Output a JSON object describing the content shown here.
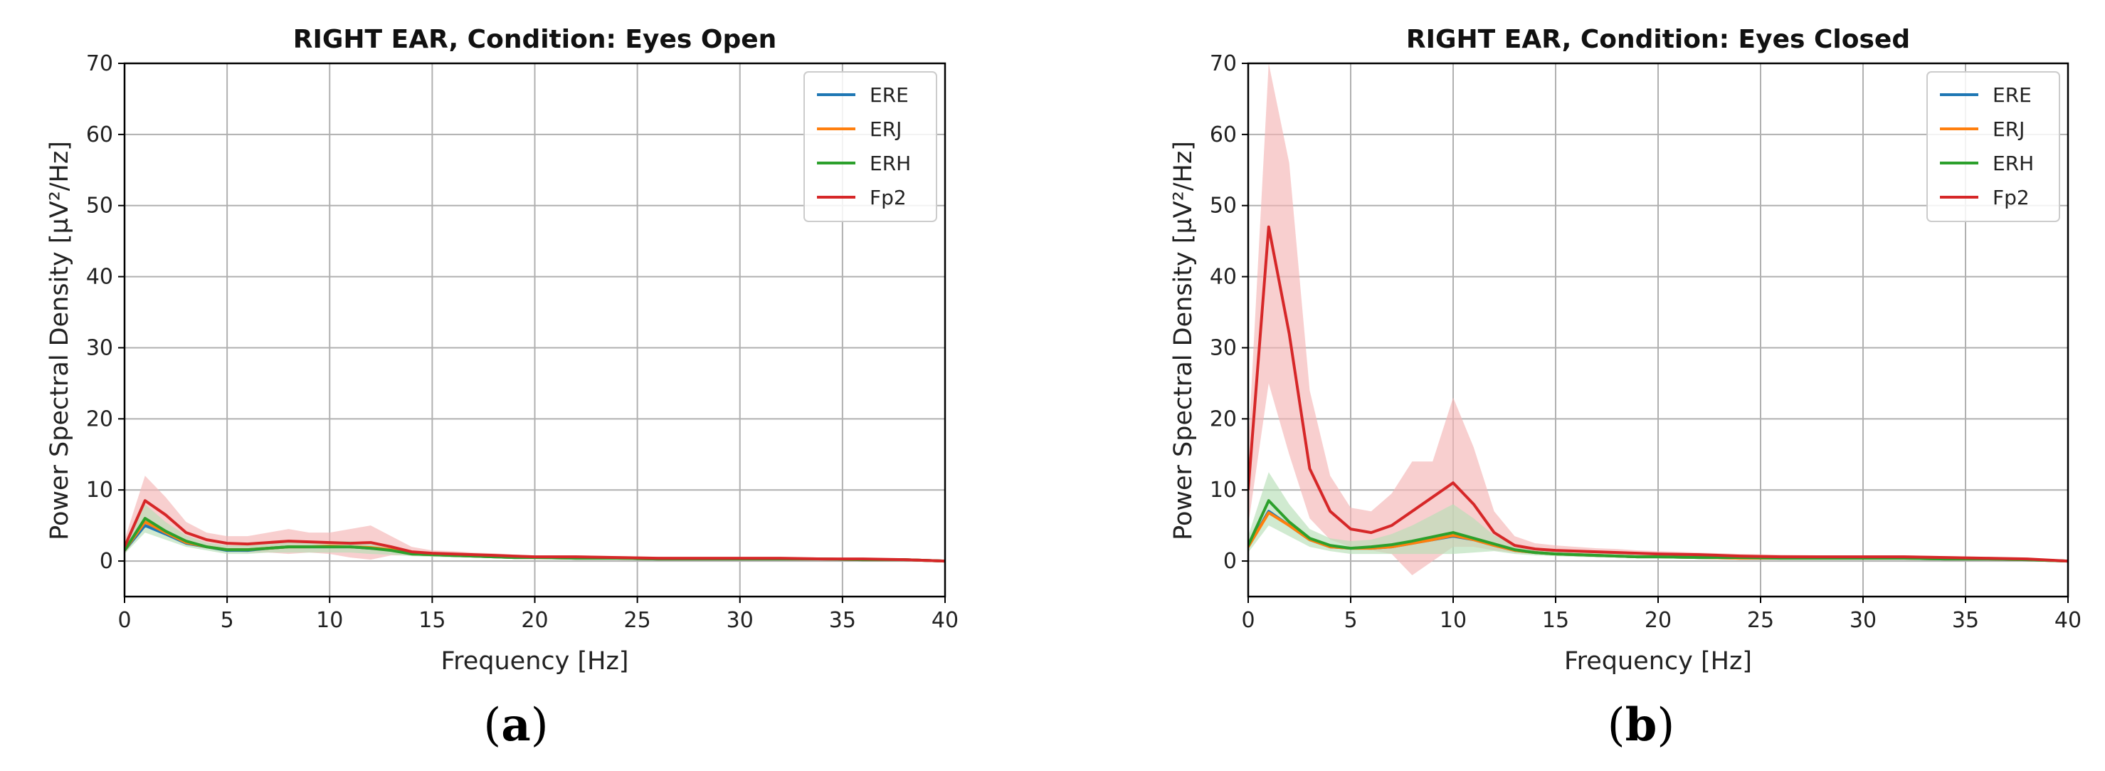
{
  "chart_data": [
    {
      "type": "line",
      "title": "RIGHT EAR, Condition: Eyes Open",
      "xlabel": "Frequency [Hz]",
      "ylabel": "Power Spectral Density [µV²/Hz]",
      "xlim": [
        0,
        40
      ],
      "ylim": [
        -5,
        70
      ],
      "xticks": [
        0,
        5,
        10,
        15,
        20,
        25,
        30,
        35,
        40
      ],
      "yticks": [
        0,
        10,
        20,
        30,
        40,
        50,
        60,
        70
      ],
      "grid": true,
      "legend_position": "top-right",
      "x": [
        0,
        1,
        2,
        3,
        4,
        5,
        6,
        7,
        8,
        9,
        10,
        11,
        12,
        13,
        14,
        15,
        16,
        17,
        18,
        19,
        20,
        22,
        24,
        26,
        28,
        30,
        32,
        34,
        36,
        38,
        40
      ],
      "series": [
        {
          "name": "ERE",
          "color": "#1f77b4",
          "values": [
            1.5,
            5.0,
            3.8,
            2.5,
            2.0,
            1.5,
            1.5,
            1.8,
            2.0,
            2.0,
            2.0,
            2.0,
            1.8,
            1.6,
            1.0,
            0.9,
            0.8,
            0.7,
            0.6,
            0.5,
            0.5,
            0.4,
            0.4,
            0.3,
            0.3,
            0.3,
            0.3,
            0.3,
            0.2,
            0.2,
            0.0
          ]
        },
        {
          "name": "ERJ",
          "color": "#ff7f0e",
          "values": [
            1.5,
            5.5,
            4.0,
            2.6,
            2.0,
            1.6,
            1.6,
            1.8,
            2.0,
            2.0,
            2.1,
            2.0,
            1.9,
            1.6,
            1.0,
            0.9,
            0.8,
            0.7,
            0.6,
            0.5,
            0.5,
            0.4,
            0.4,
            0.3,
            0.3,
            0.3,
            0.3,
            0.3,
            0.2,
            0.2,
            0.0
          ]
        },
        {
          "name": "ERH",
          "color": "#2ca02c",
          "values": [
            1.5,
            6.0,
            4.2,
            2.8,
            2.0,
            1.6,
            1.6,
            1.8,
            2.0,
            2.0,
            2.0,
            2.0,
            1.8,
            1.5,
            1.0,
            0.9,
            0.8,
            0.7,
            0.6,
            0.5,
            0.5,
            0.4,
            0.4,
            0.3,
            0.3,
            0.3,
            0.3,
            0.3,
            0.2,
            0.2,
            0.0
          ]
        },
        {
          "name": "Fp2",
          "color": "#d62728",
          "values": [
            2.0,
            8.5,
            6.5,
            4.0,
            3.0,
            2.5,
            2.4,
            2.6,
            2.8,
            2.7,
            2.6,
            2.5,
            2.6,
            2.0,
            1.3,
            1.1,
            1.0,
            0.9,
            0.8,
            0.7,
            0.6,
            0.6,
            0.5,
            0.4,
            0.4,
            0.4,
            0.4,
            0.3,
            0.3,
            0.2,
            0.0
          ]
        }
      ],
      "bands": [
        {
          "series": "Fp2",
          "color": "#f4b6b6",
          "lower": [
            1.0,
            5.0,
            4.0,
            2.5,
            2.0,
            1.5,
            1.2,
            1.2,
            1.0,
            1.2,
            1.0,
            0.5,
            0.2,
            0.8,
            0.8,
            0.7,
            0.6,
            0.6,
            0.5,
            0.5,
            0.4,
            0.4,
            0.3,
            0.3,
            0.3,
            0.3,
            0.3,
            0.2,
            0.2,
            0.1,
            0.0
          ],
          "upper": [
            3.0,
            12.0,
            9.0,
            5.5,
            4.0,
            3.5,
            3.5,
            4.0,
            4.5,
            4.0,
            4.0,
            4.5,
            5.0,
            3.5,
            2.0,
            1.5,
            1.4,
            1.2,
            1.1,
            0.9,
            0.8,
            0.8,
            0.7,
            0.6,
            0.5,
            0.5,
            0.5,
            0.4,
            0.4,
            0.3,
            0.0
          ]
        },
        {
          "series": "ERH",
          "color": "#b7dfb7",
          "lower": [
            1.0,
            4.0,
            3.0,
            2.0,
            1.5,
            1.0,
            1.0,
            1.2,
            1.2,
            1.2,
            1.2,
            1.2,
            1.0,
            0.9,
            0.7,
            0.6,
            0.5,
            0.5,
            0.4,
            0.4,
            0.3,
            0.3,
            0.3,
            0.2,
            0.2,
            0.2,
            0.2,
            0.2,
            0.1,
            0.1,
            0.0
          ],
          "upper": [
            2.0,
            8.0,
            5.5,
            3.6,
            2.6,
            2.2,
            2.2,
            2.4,
            2.8,
            2.8,
            2.8,
            2.8,
            2.6,
            2.1,
            1.3,
            1.2,
            1.1,
            0.9,
            0.8,
            0.6,
            0.6,
            0.5,
            0.5,
            0.4,
            0.4,
            0.4,
            0.4,
            0.4,
            0.3,
            0.3,
            0.0
          ]
        }
      ]
    },
    {
      "type": "line",
      "title": "RIGHT EAR, Condition: Eyes Closed",
      "xlabel": "Frequency [Hz]",
      "ylabel": "Power Spectral Density [µV²/Hz]",
      "xlim": [
        0,
        40
      ],
      "ylim": [
        -5,
        70
      ],
      "xticks": [
        0,
        5,
        10,
        15,
        20,
        25,
        30,
        35,
        40
      ],
      "yticks": [
        0,
        10,
        20,
        30,
        40,
        50,
        60,
        70
      ],
      "grid": true,
      "legend_position": "top-right",
      "x": [
        0,
        1,
        2,
        3,
        4,
        5,
        6,
        7,
        8,
        9,
        10,
        11,
        12,
        13,
        14,
        15,
        16,
        17,
        18,
        19,
        20,
        22,
        24,
        26,
        28,
        30,
        32,
        34,
        36,
        38,
        40
      ],
      "series": [
        {
          "name": "ERE",
          "color": "#1f77b4",
          "values": [
            2.0,
            7.0,
            5.0,
            3.0,
            2.0,
            1.8,
            1.8,
            2.0,
            2.5,
            3.0,
            3.5,
            3.0,
            2.2,
            1.5,
            1.2,
            1.0,
            0.9,
            0.8,
            0.7,
            0.6,
            0.6,
            0.5,
            0.4,
            0.4,
            0.4,
            0.4,
            0.4,
            0.3,
            0.3,
            0.2,
            0.0
          ]
        },
        {
          "name": "ERJ",
          "color": "#ff7f0e",
          "values": [
            2.0,
            6.8,
            5.0,
            3.0,
            2.0,
            1.8,
            1.8,
            2.0,
            2.5,
            3.0,
            3.6,
            3.0,
            2.2,
            1.5,
            1.2,
            1.0,
            0.9,
            0.8,
            0.7,
            0.6,
            0.6,
            0.5,
            0.4,
            0.4,
            0.4,
            0.4,
            0.4,
            0.3,
            0.3,
            0.2,
            0.0
          ]
        },
        {
          "name": "ERH",
          "color": "#2ca02c",
          "values": [
            2.2,
            8.5,
            5.5,
            3.2,
            2.2,
            1.8,
            2.0,
            2.3,
            2.8,
            3.4,
            4.0,
            3.2,
            2.4,
            1.6,
            1.2,
            1.0,
            0.9,
            0.8,
            0.7,
            0.6,
            0.6,
            0.5,
            0.5,
            0.4,
            0.4,
            0.4,
            0.4,
            0.3,
            0.3,
            0.2,
            0.0
          ]
        },
        {
          "name": "Fp2",
          "color": "#d62728",
          "values": [
            10.0,
            47.0,
            32.0,
            13.0,
            7.0,
            4.5,
            4.0,
            5.0,
            7.0,
            9.0,
            11.0,
            8.0,
            4.0,
            2.2,
            1.7,
            1.5,
            1.4,
            1.3,
            1.2,
            1.1,
            1.0,
            0.9,
            0.7,
            0.6,
            0.6,
            0.6,
            0.6,
            0.5,
            0.4,
            0.3,
            0.0
          ]
        }
      ],
      "bands": [
        {
          "series": "Fp2",
          "color": "#f4b6b6",
          "lower": [
            5.0,
            25.0,
            15.0,
            6.0,
            3.0,
            2.0,
            1.5,
            1.0,
            -2.0,
            0.0,
            2.0,
            2.0,
            1.5,
            1.2,
            1.0,
            1.0,
            1.0,
            0.9,
            0.8,
            0.8,
            0.7,
            0.6,
            0.5,
            0.4,
            0.4,
            0.4,
            0.4,
            0.3,
            0.3,
            0.2,
            0.0
          ],
          "upper": [
            16.0,
            70.0,
            56.0,
            24.0,
            12.0,
            7.5,
            7.0,
            9.5,
            14.0,
            14.0,
            23.0,
            16.0,
            7.0,
            3.5,
            2.5,
            2.2,
            2.0,
            1.8,
            1.7,
            1.5,
            1.4,
            1.2,
            1.0,
            0.9,
            0.8,
            0.8,
            0.8,
            0.7,
            0.6,
            0.4,
            0.0
          ]
        },
        {
          "series": "ERH",
          "color": "#b7dfb7",
          "lower": [
            1.2,
            5.0,
            3.5,
            2.0,
            1.4,
            1.0,
            1.0,
            1.0,
            1.0,
            1.0,
            1.0,
            1.2,
            1.4,
            1.0,
            0.8,
            0.7,
            0.6,
            0.5,
            0.5,
            0.4,
            0.4,
            0.3,
            0.3,
            0.3,
            0.3,
            0.3,
            0.3,
            0.2,
            0.2,
            0.1,
            0.0
          ],
          "upper": [
            3.5,
            12.5,
            8.0,
            4.5,
            3.2,
            2.8,
            3.0,
            3.8,
            5.0,
            6.5,
            8.0,
            6.0,
            3.6,
            2.3,
            1.7,
            1.4,
            1.3,
            1.2,
            1.0,
            0.9,
            0.9,
            0.8,
            0.7,
            0.6,
            0.6,
            0.6,
            0.6,
            0.5,
            0.4,
            0.3,
            0.0
          ]
        }
      ]
    }
  ],
  "captions": [
    {
      "open": "(",
      "letter": "a",
      "close": ")"
    },
    {
      "open": "(",
      "letter": "b",
      "close": ")"
    }
  ]
}
